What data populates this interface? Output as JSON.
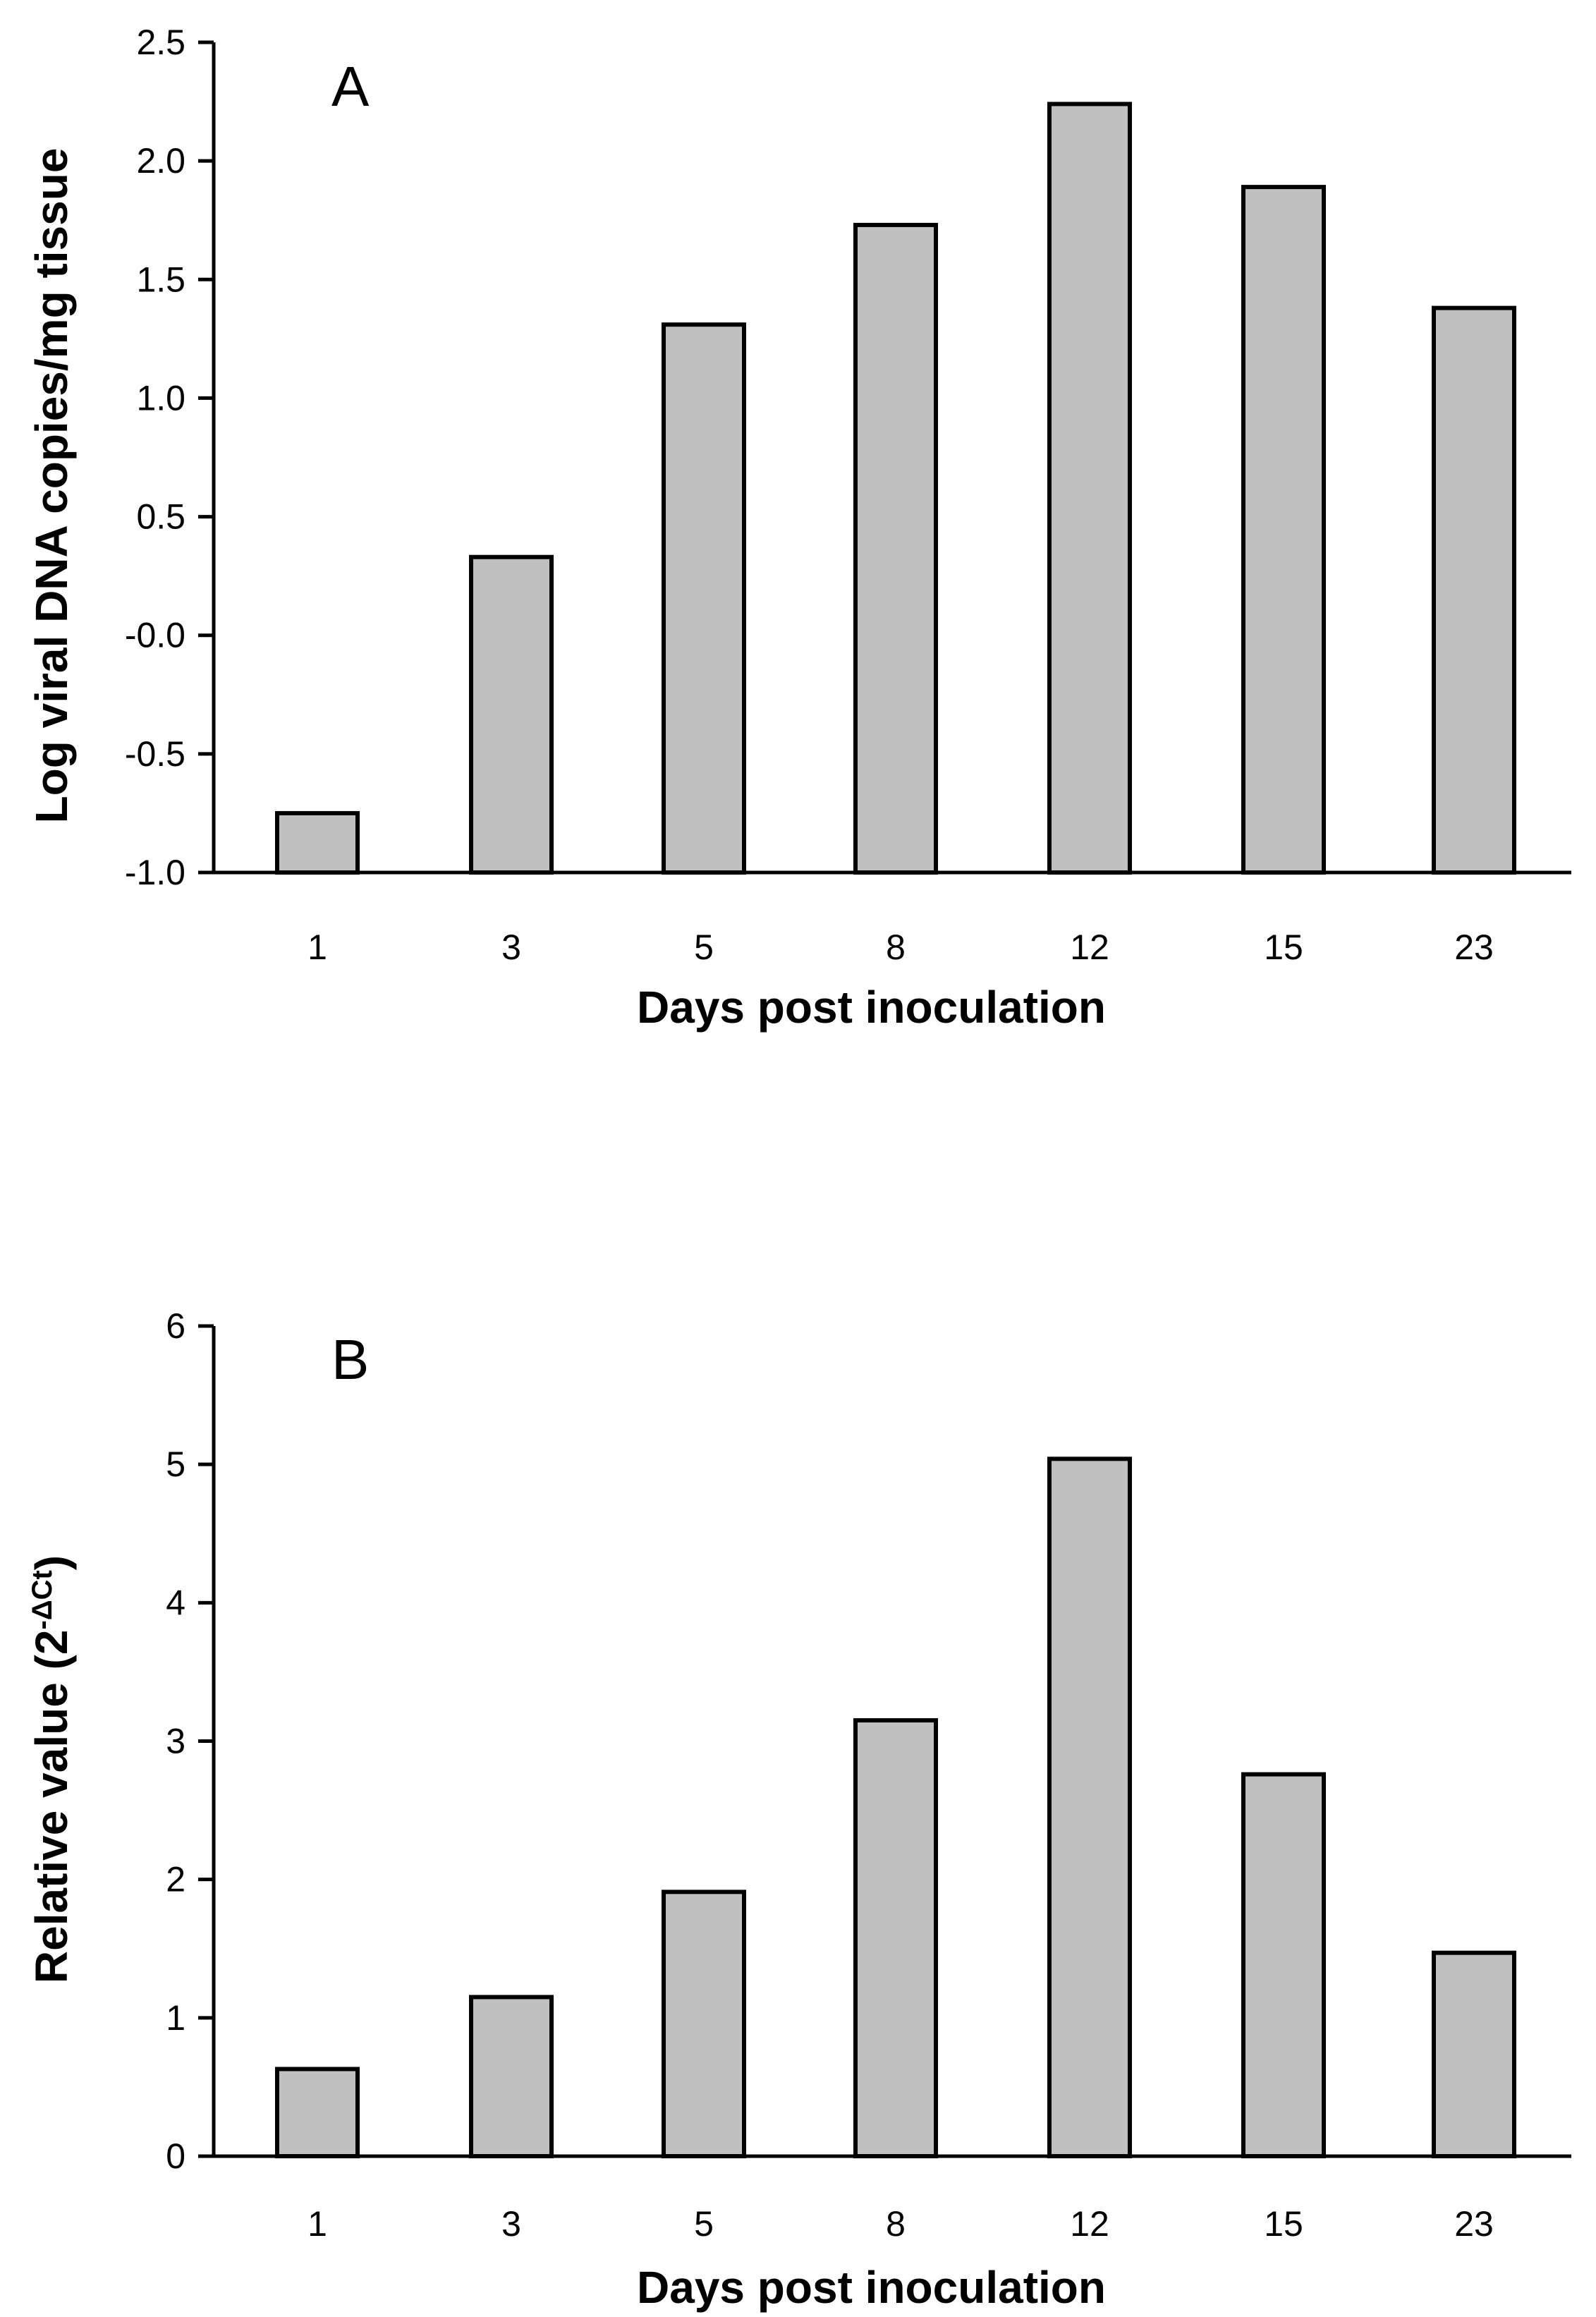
{
  "chart_data": [
    {
      "type": "bar",
      "panel_label": "A",
      "categories": [
        "1",
        "3",
        "5",
        "8",
        "12",
        "15",
        "23"
      ],
      "values": [
        -0.75,
        0.33,
        1.31,
        1.73,
        2.24,
        1.89,
        1.38
      ],
      "xlabel": "Days post inoculation",
      "ylabel": "Log viral DNA copies/mg tissue",
      "ylim": [
        -1.0,
        2.5
      ],
      "yticks": [
        -1.0,
        -0.5,
        0.0,
        0.5,
        1.0,
        1.5,
        2.0,
        2.5
      ],
      "ytick_labels": [
        "-1.0",
        "-0.5",
        "-0.0",
        "0.5",
        "1.0",
        "1.5",
        "2.0",
        "2.5"
      ],
      "bar_color": "#c0c0c0"
    },
    {
      "type": "bar",
      "panel_label": "B",
      "categories": [
        "1",
        "3",
        "5",
        "8",
        "12",
        "15",
        "23"
      ],
      "values": [
        0.63,
        1.15,
        1.91,
        3.15,
        5.04,
        2.76,
        1.47
      ],
      "xlabel": "Days post inoculation",
      "ylabel_main": "Relative value (2",
      "ylabel_sup": "-ΔCt",
      "ylabel_end": ")",
      "ylim": [
        0,
        6
      ],
      "yticks": [
        0,
        1,
        2,
        3,
        4,
        5,
        6
      ],
      "ytick_labels": [
        "0",
        "1",
        "2",
        "3",
        "4",
        "5",
        "6"
      ],
      "bar_color": "#c0c0c0"
    }
  ]
}
